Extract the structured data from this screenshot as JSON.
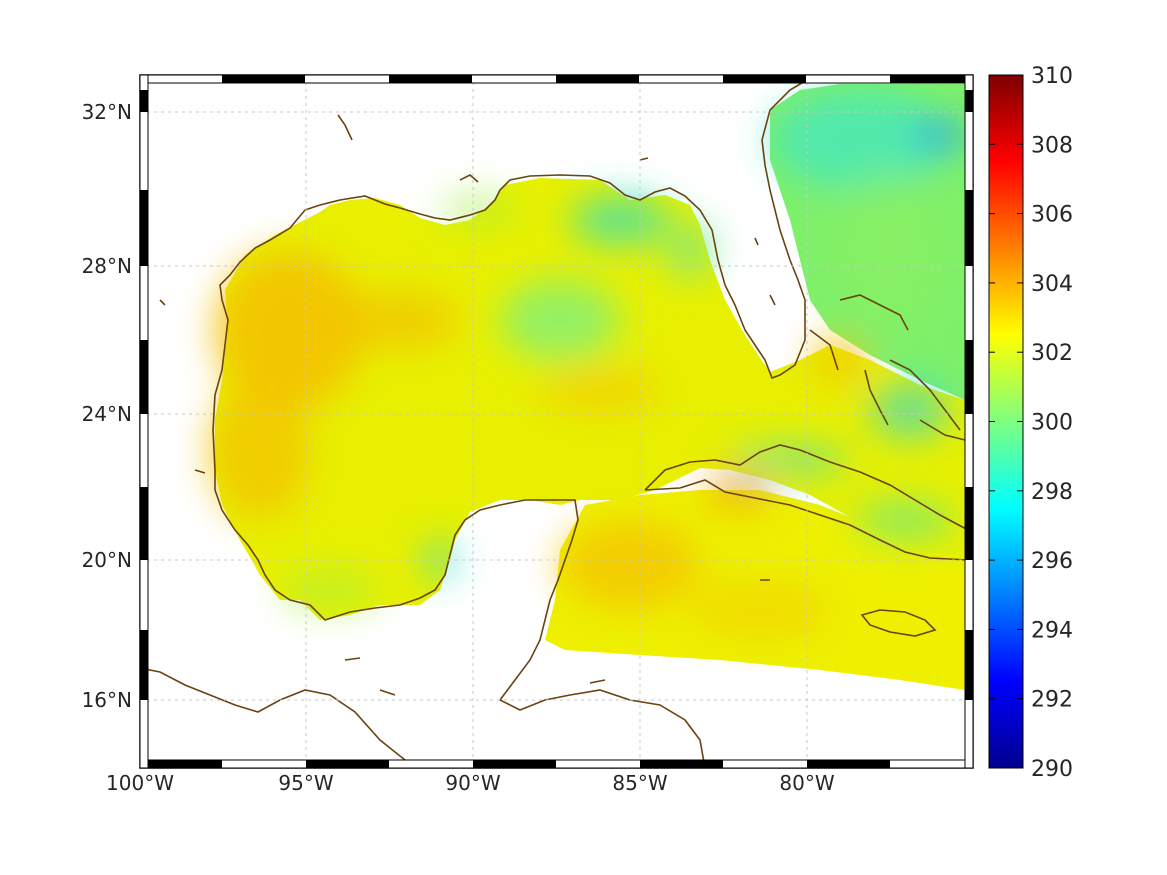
{
  "map": {
    "lon_ticks": [
      "100°W",
      "95°W",
      "90°W",
      "85°W",
      "80°W"
    ],
    "lat_ticks": [
      "16°N",
      "20°N",
      "24°N",
      "28°N",
      "32°N"
    ],
    "lon_range": [
      -100,
      -75
    ],
    "lat_range": [
      14.7,
      33.0
    ],
    "coastline_color": "#6b4310",
    "grid": true
  },
  "colorbar": {
    "min": 290,
    "max": 310,
    "ticks": [
      "290",
      "292",
      "294",
      "296",
      "298",
      "300",
      "302",
      "304",
      "306",
      "308",
      "310"
    ],
    "colormap": "jet"
  },
  "field": {
    "description_units": "K",
    "typical_range": [
      298,
      304
    ]
  }
}
